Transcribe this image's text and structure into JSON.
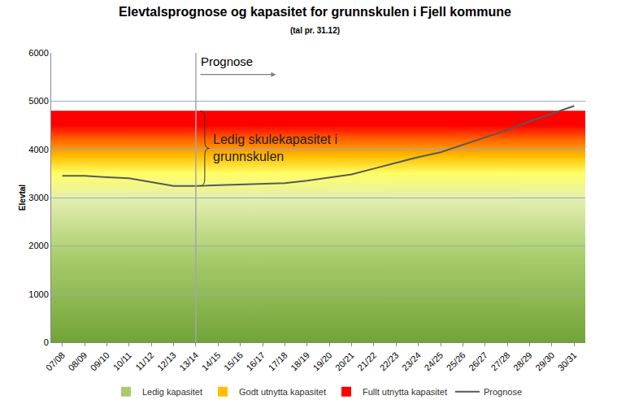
{
  "chart_data": {
    "type": "line",
    "title": "Elevtalsprognose og kapasitet for grunnskulen i Fjell kommune",
    "subtitle": "(tal pr. 31.12)",
    "y_label": "Elevtal",
    "categories": [
      "07/08",
      "08/09",
      "09/10",
      "10/11",
      "11/12",
      "12/13",
      "13/14",
      "14/15",
      "15/16",
      "16/17",
      "17/18",
      "18/19",
      "19/20",
      "20/21",
      "21/22",
      "22/23",
      "23/24",
      "24/25",
      "25/26",
      "26/27",
      "27/28",
      "28/29",
      "29/30",
      "30/31"
    ],
    "series": [
      {
        "name": "Prognose",
        "color": "#595959",
        "values": [
          3450,
          3450,
          3420,
          3400,
          3320,
          3240,
          3240,
          3255,
          3265,
          3280,
          3300,
          3350,
          3410,
          3480,
          3600,
          3720,
          3840,
          3940,
          4100,
          4250,
          4400,
          4580,
          4740,
          4900
        ]
      }
    ],
    "bands": [
      {
        "name": "Ledig kapasitet",
        "color": "#a8cc6c",
        "to": 3500
      },
      {
        "name": "Godt utnytta kapasitet",
        "color": "#ffc000",
        "to": 4200
      },
      {
        "name": "Fullt utnytta kapasitet",
        "color": "#ff0000",
        "to": 4800
      }
    ],
    "forecast_start": "13/14",
    "forecast_label": "Prognose",
    "gap_label": [
      "Ledig skulekapasitet i",
      "grunnskulen"
    ],
    "ylim": [
      0,
      6000
    ],
    "yticks": [
      0,
      1000,
      2000,
      3000,
      4000,
      5000,
      6000
    ],
    "grid": true,
    "legend": "bottom"
  }
}
